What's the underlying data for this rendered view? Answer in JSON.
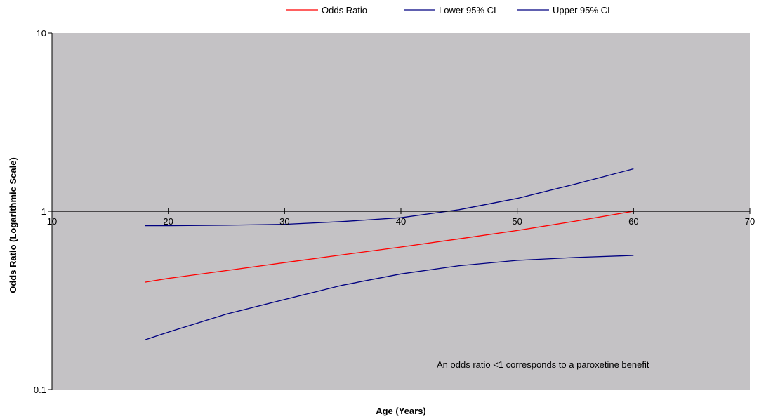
{
  "chart_data": {
    "type": "line",
    "title": "",
    "xlabel": "Age (Years)",
    "ylabel": "Odds Ratio (Logarithmic Scale)",
    "xlim": [
      10,
      70
    ],
    "ylim": [
      0.1,
      10
    ],
    "y_scale": "log",
    "x_ticks": [
      10,
      20,
      30,
      40,
      50,
      60,
      70
    ],
    "y_ticks": [
      0.1,
      1,
      10
    ],
    "x_tick_labels": [
      "10",
      "20",
      "30",
      "40",
      "50",
      "60",
      "70"
    ],
    "y_tick_labels": [
      "0.1",
      "1",
      "10"
    ],
    "grid": false,
    "plot_background": "#c4c2c5",
    "legend_position": "top",
    "annotation": "An odds ratio <1 corresponds to a paroxetine benefit",
    "series": [
      {
        "name": "Odds Ratio",
        "color": "#ff0000",
        "x": [
          18,
          20,
          25,
          30,
          35,
          40,
          45,
          50,
          55,
          60
        ],
        "y": [
          0.4,
          0.42,
          0.465,
          0.515,
          0.57,
          0.63,
          0.7,
          0.78,
          0.88,
          1.0
        ]
      },
      {
        "name": "Lower 95% CI",
        "color": "#000080",
        "x": [
          18,
          20,
          25,
          30,
          35,
          40,
          45,
          50,
          55,
          60
        ],
        "y": [
          0.19,
          0.21,
          0.265,
          0.32,
          0.385,
          0.445,
          0.495,
          0.53,
          0.55,
          0.565
        ]
      },
      {
        "name": "Upper 95% CI",
        "color": "#000080",
        "x": [
          18,
          20,
          25,
          30,
          35,
          40,
          45,
          50,
          55,
          60
        ],
        "y": [
          0.83,
          0.83,
          0.835,
          0.845,
          0.875,
          0.92,
          1.02,
          1.18,
          1.42,
          1.73
        ]
      }
    ]
  }
}
